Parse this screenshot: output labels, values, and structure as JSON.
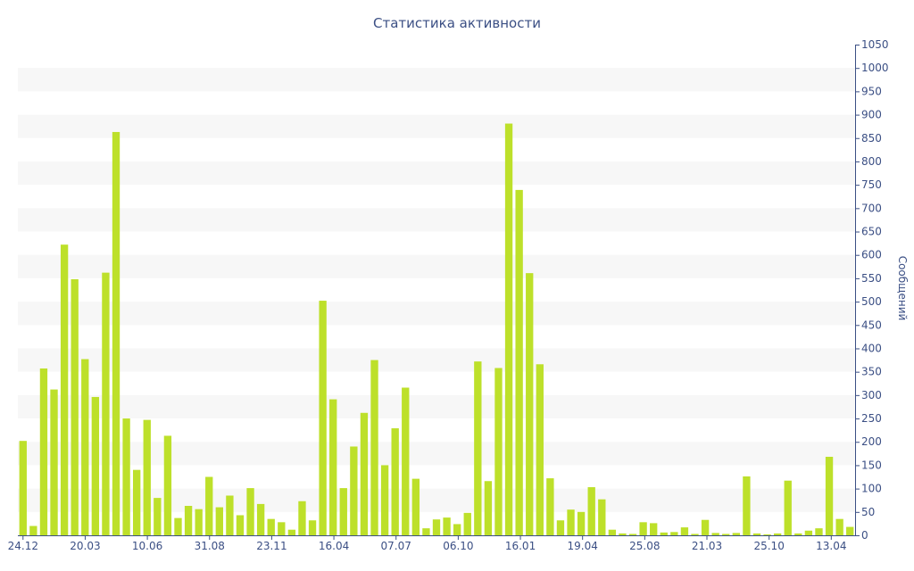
{
  "chart_data": {
    "type": "bar",
    "title": "Статистика активности",
    "xlabel": "",
    "ylabel": "Сообщений",
    "ylim": [
      0,
      1050
    ],
    "y_ticks": [
      0,
      50,
      100,
      150,
      200,
      250,
      300,
      350,
      400,
      450,
      500,
      550,
      600,
      650,
      700,
      750,
      800,
      850,
      900,
      950,
      1000,
      1050
    ],
    "y_axis_side": "right",
    "grid": "alternating horizontal bands",
    "x_tick_labels": [
      "24.12",
      "20.03",
      "10.06",
      "31.08",
      "23.11",
      "16.04",
      "07.07",
      "06.10",
      "16.01",
      "19.04",
      "25.08",
      "21.03",
      "25.10",
      "13.04"
    ],
    "values": [
      202,
      20,
      357,
      312,
      622,
      548,
      377,
      296,
      562,
      863,
      250,
      140,
      247,
      80,
      213,
      37,
      63,
      56,
      125,
      60,
      85,
      43,
      101,
      67,
      35,
      28,
      12,
      73,
      32,
      502,
      291,
      101,
      190,
      262,
      375,
      150,
      229,
      316,
      121,
      15,
      34,
      38,
      24,
      48,
      372,
      116,
      358,
      881,
      739,
      561,
      366,
      122,
      32,
      55,
      50,
      103,
      77,
      12,
      4,
      3,
      28,
      26,
      6,
      7,
      17,
      3,
      33,
      5,
      3,
      5,
      126,
      4,
      2,
      4,
      117,
      4,
      10,
      15,
      168,
      35,
      18
    ],
    "colors": {
      "bar": "#bde02a",
      "band": "#f7f7f7",
      "text": "#3b4f84",
      "axis": "#3b4f84"
    }
  }
}
